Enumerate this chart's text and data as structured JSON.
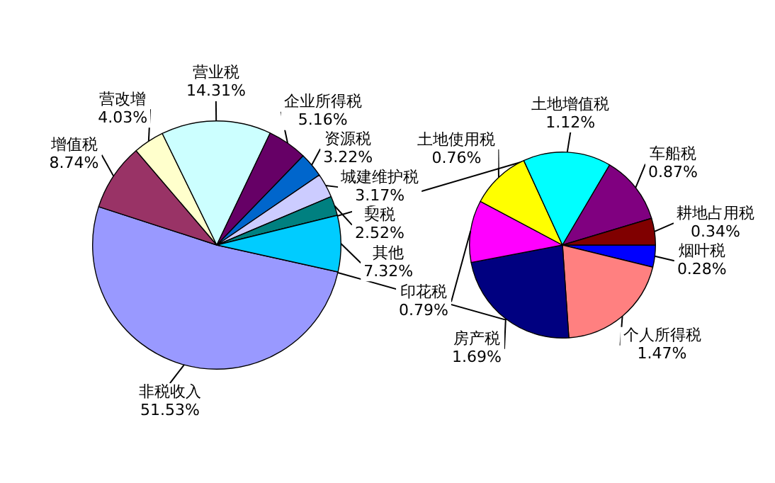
{
  "chart_data": [
    {
      "type": "pie",
      "categories": [
        "非税收入",
        "增值税",
        "营改增",
        "营业税",
        "企业所得税",
        "资源税",
        "城建维护税",
        "契税",
        "其他"
      ],
      "values": [
        51.53,
        8.74,
        4.03,
        14.31,
        5.16,
        3.22,
        3.17,
        2.52,
        7.32
      ],
      "colors": [
        "#9999ff",
        "#993366",
        "#ffffcc",
        "#ccffff",
        "#660066",
        "#0066cc",
        "#ccccff",
        "#008080",
        "#00ccff"
      ],
      "value_labels": [
        "51.53%",
        "8.74%",
        "4.03%",
        "14.31%",
        "5.16%",
        "3.22%",
        "3.17%",
        "2.52%",
        "7.32%"
      ]
    },
    {
      "type": "pie",
      "categories": [
        "烟叶税",
        "个人所得税",
        "房产税",
        "印花税",
        "土地使用税",
        "土地增值税",
        "车船税",
        "耕地占用税"
      ],
      "values": [
        0.28,
        1.47,
        1.69,
        0.79,
        0.76,
        1.12,
        0.87,
        0.34
      ],
      "colors": [
        "#0000ff",
        "#ff8080",
        "#000080",
        "#ff00ff",
        "#ffff00",
        "#00ffff",
        "#800080",
        "#800000"
      ],
      "value_labels": [
        "0.28%",
        "1.47%",
        "1.69%",
        "0.79%",
        "0.76%",
        "1.12%",
        "0.87%",
        "0.34%"
      ]
    }
  ]
}
